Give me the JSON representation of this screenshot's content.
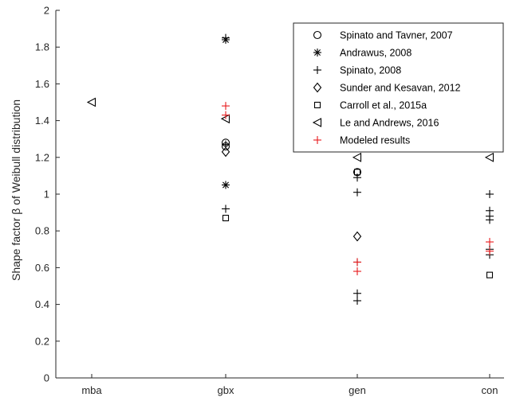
{
  "chart_data": {
    "type": "scatter",
    "categories": [
      "mba",
      "gbx",
      "gen",
      "con"
    ],
    "ylabel": "Shape factor β of Weibull distribution",
    "xlabel": "",
    "ylim": [
      0,
      2
    ],
    "yticks": [
      0,
      0.2,
      0.4,
      0.6,
      0.8,
      1,
      1.2,
      1.4,
      1.6,
      1.8,
      2
    ],
    "ytick_labels": [
      "0",
      "0.2",
      "0.4",
      "0.6",
      "0.8",
      "1",
      "1.2",
      "1.4",
      "1.6",
      "1.8",
      "2"
    ],
    "grid": false,
    "legend_position": "top-right",
    "series": [
      {
        "name": "Spinato and Tavner, 2007",
        "marker": "circle",
        "color": "#000000",
        "points": [
          {
            "category": "gbx",
            "value": 1.28
          },
          {
            "category": "gbx",
            "value": 1.26
          },
          {
            "category": "gen",
            "value": 1.12
          }
        ]
      },
      {
        "name": "Andrawus, 2008",
        "marker": "asterisk",
        "color": "#000000",
        "points": [
          {
            "category": "gbx",
            "value": 1.84
          },
          {
            "category": "gbx",
            "value": 1.05
          }
        ]
      },
      {
        "name": "Spinato, 2008",
        "marker": "plus",
        "color": "#000000",
        "points": [
          {
            "category": "gbx",
            "value": 1.85
          },
          {
            "category": "gbx",
            "value": 1.27
          },
          {
            "category": "gbx",
            "value": 0.92
          },
          {
            "category": "gen",
            "value": 1.09
          },
          {
            "category": "gen",
            "value": 1.01
          },
          {
            "category": "gen",
            "value": 0.63
          },
          {
            "category": "gen",
            "value": 0.46
          },
          {
            "category": "gen",
            "value": 0.42
          },
          {
            "category": "con",
            "value": 1.0
          },
          {
            "category": "con",
            "value": 0.91
          },
          {
            "category": "con",
            "value": 0.88
          },
          {
            "category": "con",
            "value": 0.86
          },
          {
            "category": "con",
            "value": 0.7
          },
          {
            "category": "con",
            "value": 0.67
          }
        ]
      },
      {
        "name": "Sunder and Kesavan, 2012",
        "marker": "diamond",
        "color": "#000000",
        "points": [
          {
            "category": "gbx",
            "value": 1.23
          },
          {
            "category": "gen",
            "value": 0.77
          }
        ]
      },
      {
        "name": "Carroll et al., 2015a",
        "marker": "square",
        "color": "#000000",
        "points": [
          {
            "category": "gbx",
            "value": 0.87
          },
          {
            "category": "gen",
            "value": 1.12
          },
          {
            "category": "con",
            "value": 0.56
          }
        ]
      },
      {
        "name": "Le and Andrews, 2016",
        "marker": "triangle-left",
        "color": "#000000",
        "points": [
          {
            "category": "mba",
            "value": 1.5
          },
          {
            "category": "gbx",
            "value": 1.41
          },
          {
            "category": "gen",
            "value": 1.2
          },
          {
            "category": "con",
            "value": 1.2
          }
        ]
      },
      {
        "name": "Modeled results",
        "marker": "plus",
        "color": "#e8191b",
        "points": [
          {
            "category": "gbx",
            "value": 1.48
          },
          {
            "category": "gbx",
            "value": 1.43
          },
          {
            "category": "gen",
            "value": 0.63
          },
          {
            "category": "gen",
            "value": 0.58
          },
          {
            "category": "con",
            "value": 0.74
          },
          {
            "category": "con",
            "value": 0.69
          }
        ]
      }
    ]
  }
}
